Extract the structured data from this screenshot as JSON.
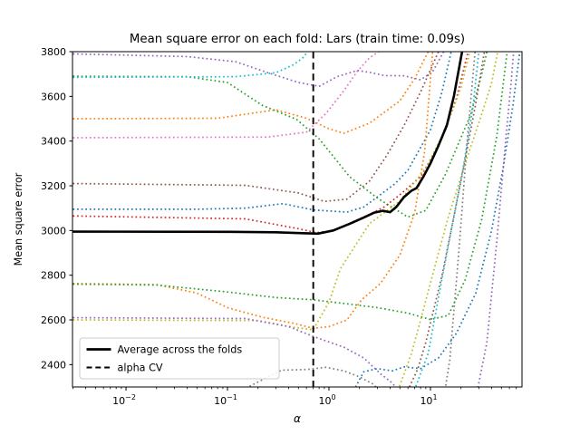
{
  "chart_data": {
    "type": "line",
    "title": "Mean square error on each fold: Lars (train time: 0.09s)",
    "xlabel": "α",
    "ylabel": "Mean square error",
    "x_scale": "log",
    "xlim": [
      0.00297,
      79.8
    ],
    "ylim": [
      2300,
      3800
    ],
    "grid": false,
    "legend_position": "lower left",
    "legend": {
      "average_label": "Average across the folds",
      "alpha_cv_label": "alpha CV"
    },
    "x_ticks": [
      {
        "value": 0.01,
        "base": "10",
        "exp": "−2"
      },
      {
        "value": 0.1,
        "base": "10",
        "exp": "−1"
      },
      {
        "value": 1,
        "base": "10",
        "exp": "0"
      },
      {
        "value": 10,
        "base": "10",
        "exp": "1"
      }
    ],
    "y_ticks": [
      2400,
      2600,
      2800,
      3000,
      3200,
      3400,
      3600,
      3800
    ],
    "alpha_cv": 0.7,
    "average": {
      "name": "average-across-folds",
      "color": "#000000",
      "points": [
        [
          0.003,
          2995
        ],
        [
          0.1,
          2994
        ],
        [
          0.3,
          2992
        ],
        [
          0.55,
          2988
        ],
        [
          0.78,
          2986
        ],
        [
          1.1,
          3000
        ],
        [
          1.6,
          3030
        ],
        [
          2.2,
          3058
        ],
        [
          2.8,
          3080
        ],
        [
          3.4,
          3088
        ],
        [
          4.0,
          3082
        ],
        [
          4.6,
          3105
        ],
        [
          5.5,
          3150
        ],
        [
          6.5,
          3178
        ],
        [
          7.3,
          3190
        ],
        [
          8.5,
          3240
        ],
        [
          10,
          3300
        ],
        [
          12,
          3380
        ],
        [
          14.5,
          3470
        ],
        [
          17,
          3600
        ],
        [
          20.5,
          3800
        ]
      ]
    },
    "folds": [
      {
        "name": "fold-blue-1",
        "color": "#1f77b4",
        "points": [
          [
            0.003,
            3095
          ],
          [
            0.05,
            3095
          ],
          [
            0.15,
            3100
          ],
          [
            0.35,
            3120
          ],
          [
            0.7,
            3092
          ],
          [
            1.5,
            3082
          ],
          [
            2.2,
            3105
          ],
          [
            3,
            3150
          ],
          [
            4.5,
            3210
          ],
          [
            6,
            3270
          ],
          [
            10,
            3450
          ],
          [
            13,
            3620
          ],
          [
            16,
            3800
          ]
        ]
      },
      {
        "name": "fold-orange-1",
        "color": "#ff7f0e",
        "points": [
          [
            0.003,
            3500
          ],
          [
            0.08,
            3502
          ],
          [
            0.3,
            3540
          ],
          [
            0.6,
            3502
          ],
          [
            1.0,
            3455
          ],
          [
            1.4,
            3435
          ],
          [
            2.5,
            3480
          ],
          [
            5,
            3580
          ],
          [
            7,
            3680
          ],
          [
            9.5,
            3800
          ]
        ]
      },
      {
        "name": "fold-green-1",
        "color": "#2ca02c",
        "points": [
          [
            0.003,
            3690
          ],
          [
            0.04,
            3688
          ],
          [
            0.1,
            3662
          ],
          [
            0.22,
            3560
          ],
          [
            0.48,
            3497
          ],
          [
            0.8,
            3410
          ],
          [
            1.6,
            3240
          ],
          [
            3,
            3145
          ],
          [
            6,
            3060
          ],
          [
            9,
            3090
          ],
          [
            14,
            3250
          ],
          [
            25,
            3520
          ],
          [
            32,
            3700
          ],
          [
            36,
            3800
          ]
        ]
      },
      {
        "name": "fold-red-1",
        "color": "#d62728",
        "points": [
          [
            0.003,
            3065
          ],
          [
            0.15,
            3052
          ],
          [
            0.5,
            3008
          ],
          [
            0.75,
            2990
          ],
          [
            1.1,
            3000
          ],
          [
            1.6,
            3032
          ],
          [
            2.4,
            3068
          ],
          [
            3.5,
            3105
          ],
          [
            5,
            3160
          ],
          [
            8,
            3240
          ],
          [
            12,
            3380
          ],
          [
            18,
            3590
          ],
          [
            23.5,
            3800
          ]
        ]
      },
      {
        "name": "fold-purple-1",
        "color": "#9467bd",
        "points": [
          [
            0.003,
            3790
          ],
          [
            0.04,
            3778
          ],
          [
            0.12,
            3755
          ],
          [
            0.25,
            3706
          ],
          [
            0.5,
            3662
          ],
          [
            0.8,
            3645
          ],
          [
            1.2,
            3688
          ],
          [
            1.9,
            3716
          ],
          [
            2.6,
            3706
          ],
          [
            3.5,
            3693
          ],
          [
            5.5,
            3692
          ],
          [
            8,
            3674
          ],
          [
            10.5,
            3710
          ],
          [
            13.5,
            3800
          ]
        ]
      },
      {
        "name": "fold-brown-1",
        "color": "#8c564b",
        "points": [
          [
            0.003,
            3210
          ],
          [
            0.15,
            3202
          ],
          [
            0.5,
            3168
          ],
          [
            0.9,
            3130
          ],
          [
            1.5,
            3140
          ],
          [
            2.5,
            3220
          ],
          [
            3.7,
            3335
          ],
          [
            5.5,
            3470
          ],
          [
            8,
            3620
          ],
          [
            12,
            3800
          ]
        ]
      },
      {
        "name": "fold-pink-1",
        "color": "#e377c2",
        "points": [
          [
            0.003,
            3415
          ],
          [
            0.25,
            3418
          ],
          [
            0.6,
            3440
          ],
          [
            0.94,
            3525
          ],
          [
            1.4,
            3625
          ],
          [
            1.9,
            3712
          ],
          [
            2.5,
            3772
          ],
          [
            3.1,
            3800
          ]
        ]
      },
      {
        "name": "fold-gray-1",
        "color": "#7f7f7f",
        "points": [
          [
            0.09,
            2250
          ],
          [
            0.16,
            2300
          ],
          [
            0.34,
            2375
          ],
          [
            0.6,
            2378
          ],
          [
            0.94,
            2388
          ],
          [
            1.4,
            2372
          ],
          [
            2.0,
            2345
          ],
          [
            2.8,
            2310
          ],
          [
            3.5,
            2250
          ],
          [
            13.5,
            2250
          ],
          [
            15.5,
            2420
          ],
          [
            19,
            2900
          ],
          [
            23,
            3400
          ],
          [
            27.5,
            3800
          ]
        ]
      },
      {
        "name": "fold-olive-1",
        "color": "#bcbd22",
        "points": [
          [
            0.003,
            2600
          ],
          [
            0.2,
            2597
          ],
          [
            0.45,
            2567
          ],
          [
            0.7,
            2556
          ],
          [
            1.0,
            2680
          ],
          [
            1.3,
            2830
          ],
          [
            2.5,
            3030
          ],
          [
            5,
            3132
          ],
          [
            9,
            3280
          ],
          [
            14,
            3450
          ],
          [
            20,
            3640
          ],
          [
            24.5,
            3800
          ]
        ]
      },
      {
        "name": "fold-cyan-1",
        "color": "#17becf",
        "points": [
          [
            0.003,
            3685
          ],
          [
            0.12,
            3688
          ],
          [
            0.3,
            3706
          ],
          [
            0.45,
            3742
          ],
          [
            0.56,
            3775
          ],
          [
            0.64,
            3810
          ]
        ]
      },
      {
        "name": "fold-blue-2",
        "color": "#1f77b4",
        "points": [
          [
            1.6,
            2250
          ],
          [
            2.2,
            2368
          ],
          [
            3,
            2382
          ],
          [
            4.2,
            2372
          ],
          [
            5.5,
            2390
          ],
          [
            8,
            2382
          ],
          [
            12,
            2430
          ],
          [
            18,
            2540
          ],
          [
            28,
            2720
          ],
          [
            40,
            3000
          ],
          [
            52,
            3280
          ],
          [
            65,
            3560
          ],
          [
            76,
            3800
          ]
        ]
      },
      {
        "name": "fold-orange-2",
        "color": "#ff7f0e",
        "points": [
          [
            0.003,
            2763
          ],
          [
            0.02,
            2758
          ],
          [
            0.05,
            2720
          ],
          [
            0.1,
            2655
          ],
          [
            0.22,
            2612
          ],
          [
            0.45,
            2585
          ],
          [
            0.7,
            2562
          ],
          [
            1.0,
            2570
          ],
          [
            1.5,
            2600
          ],
          [
            2.1,
            2690
          ],
          [
            3.2,
            2762
          ],
          [
            5,
            2890
          ],
          [
            7,
            3080
          ],
          [
            8.8,
            3360
          ],
          [
            10.5,
            3800
          ]
        ]
      },
      {
        "name": "fold-green-2",
        "color": "#2ca02c",
        "points": [
          [
            0.003,
            2760
          ],
          [
            0.02,
            2756
          ],
          [
            0.1,
            2725
          ],
          [
            0.3,
            2700
          ],
          [
            0.7,
            2690
          ],
          [
            1.5,
            2672
          ],
          [
            3,
            2655
          ],
          [
            6,
            2630
          ],
          [
            10,
            2602
          ],
          [
            15,
            2620
          ],
          [
            22,
            2780
          ],
          [
            32,
            3050
          ],
          [
            45,
            3420
          ],
          [
            57,
            3800
          ]
        ]
      },
      {
        "name": "fold-purple-2",
        "color": "#9467bd",
        "points": [
          [
            0.003,
            2610
          ],
          [
            0.15,
            2606
          ],
          [
            0.4,
            2570
          ],
          [
            0.7,
            2526
          ],
          [
            1.4,
            2478
          ],
          [
            2.2,
            2430
          ],
          [
            3.2,
            2360
          ],
          [
            4.2,
            2318
          ],
          [
            5.5,
            2250
          ],
          [
            28,
            2250
          ],
          [
            36,
            2500
          ],
          [
            45,
            2950
          ],
          [
            55,
            3400
          ],
          [
            62,
            3650
          ],
          [
            66,
            3800
          ]
        ]
      },
      {
        "name": "fold-brown-2",
        "color": "#8c564b",
        "points": [
          [
            5.5,
            2250
          ],
          [
            7.5,
            2380
          ],
          [
            9,
            2500
          ],
          [
            13,
            2800
          ],
          [
            17,
            3060
          ],
          [
            22,
            3320
          ],
          [
            28,
            3570
          ],
          [
            34,
            3800
          ]
        ]
      },
      {
        "name": "fold-olive-2",
        "color": "#bcbd22",
        "points": [
          [
            4.5,
            2250
          ],
          [
            6.5,
            2450
          ],
          [
            8,
            2600
          ],
          [
            12,
            2900
          ],
          [
            15,
            3060
          ],
          [
            22,
            3300
          ],
          [
            32,
            3520
          ],
          [
            40,
            3660
          ],
          [
            46,
            3800
          ]
        ]
      },
      {
        "name": "fold-cyan-2",
        "color": "#17becf",
        "points": [
          [
            6.5,
            2250
          ],
          [
            8,
            2360
          ],
          [
            9.5,
            2450
          ],
          [
            12,
            2700
          ],
          [
            16,
            3000
          ],
          [
            21,
            3280
          ],
          [
            26,
            3540
          ],
          [
            30,
            3800
          ]
        ]
      }
    ]
  }
}
